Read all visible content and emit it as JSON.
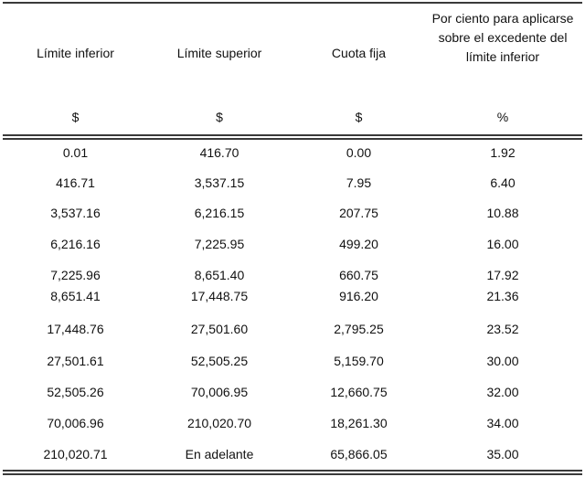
{
  "table": {
    "headers": [
      "Límite inferior",
      "Límite superior",
      "Cuota fija",
      "Por ciento para aplicarse sobre el excedente del límite inferior"
    ],
    "units": [
      "$",
      "$",
      "$",
      "%"
    ],
    "rows": [
      [
        "0.01",
        "416.70",
        "0.00",
        "1.92"
      ],
      [
        "416.71",
        "3,537.15",
        "7.95",
        "6.40"
      ],
      [
        "3,537.16",
        "6,216.15",
        "207.75",
        "10.88"
      ],
      [
        "6,216.16",
        "7,225.95",
        "499.20",
        "16.00"
      ],
      [
        "7,225.96",
        "8,651.40",
        "660.75",
        "17.92"
      ],
      [
        "8,651.41",
        "17,448.75",
        "916.20",
        "21.36"
      ],
      [
        "17,448.76",
        "27,501.60",
        "2,795.25",
        "23.52"
      ],
      [
        "27,501.61",
        "52,505.25",
        "5,159.70",
        "30.00"
      ],
      [
        "52,505.26",
        "70,006.95",
        "12,660.75",
        "32.00"
      ],
      [
        "70,006.96",
        "210,020.70",
        "18,261.30",
        "34.00"
      ],
      [
        "210,020.71",
        "En adelante",
        "65,866.05",
        "35.00"
      ]
    ]
  }
}
